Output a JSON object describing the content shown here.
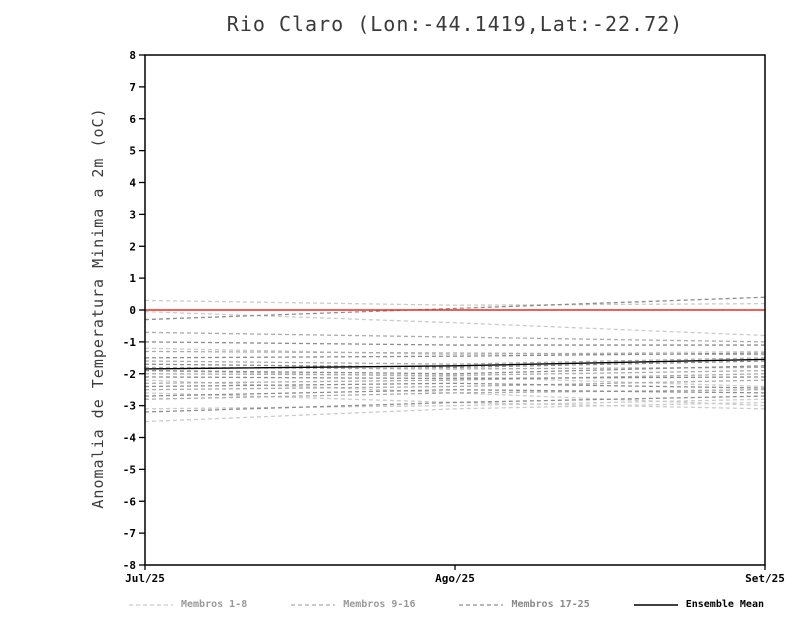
{
  "chart_data": {
    "type": "line",
    "title": "Rio Claro (Lon:-44.1419,Lat:-22.72)",
    "xlabel": "",
    "ylabel": "Anomalia de Temperatura Minima a 2m (oC)",
    "ylim": [
      -8,
      8
    ],
    "ytick_step": 1,
    "grid": false,
    "legend_position": "bottom",
    "categories": [
      "Jul/25",
      "Ago/25",
      "Set/25"
    ],
    "x": [
      0,
      1,
      2
    ],
    "zero_line": {
      "value": 0,
      "color": "#ee2a1e"
    },
    "groups": [
      {
        "name": "Membros 1-8",
        "color": "#cbcbcb",
        "style": "dashed",
        "series": [
          [
            0.3,
            0.15,
            0.2
          ],
          [
            -0.05,
            -0.4,
            -0.8
          ],
          [
            -1.2,
            -1.4,
            -1.3
          ],
          [
            -1.9,
            -2.1,
            -2.4
          ],
          [
            -2.2,
            -2.6,
            -3.0
          ],
          [
            -2.6,
            -2.9,
            -3.1
          ],
          [
            -3.1,
            -3.0,
            -2.8
          ],
          [
            -3.5,
            -3.1,
            -2.9
          ]
        ]
      },
      {
        "name": "Membros 9-16",
        "color": "#ababab",
        "style": "dashed",
        "series": [
          [
            -0.7,
            -0.85,
            -1.0
          ],
          [
            -1.3,
            -1.35,
            -1.4
          ],
          [
            -1.6,
            -1.7,
            -1.5
          ],
          [
            -1.8,
            -1.85,
            -1.8
          ],
          [
            -2.0,
            -2.05,
            -1.9
          ],
          [
            -2.3,
            -2.2,
            -2.0
          ],
          [
            -2.5,
            -2.4,
            -2.2
          ],
          [
            -2.8,
            -2.6,
            -2.5
          ]
        ]
      },
      {
        "name": "Membros 17-25",
        "color": "#8d8d8d",
        "style": "dashed",
        "series": [
          [
            -0.3,
            0.05,
            0.4
          ],
          [
            -1.0,
            -1.1,
            -1.1
          ],
          [
            -1.5,
            -1.45,
            -1.35
          ],
          [
            -1.7,
            -1.8,
            -1.6
          ],
          [
            -1.9,
            -2.0,
            -1.75
          ],
          [
            -2.1,
            -2.15,
            -2.1
          ],
          [
            -2.4,
            -2.3,
            -2.45
          ],
          [
            -2.7,
            -2.5,
            -2.6
          ],
          [
            -3.2,
            -2.9,
            -2.7
          ]
        ]
      },
      {
        "name": "Ensemble Mean",
        "color": "#000000",
        "style": "solid",
        "series": [
          [
            -1.85,
            -1.75,
            -1.55
          ]
        ]
      }
    ]
  }
}
